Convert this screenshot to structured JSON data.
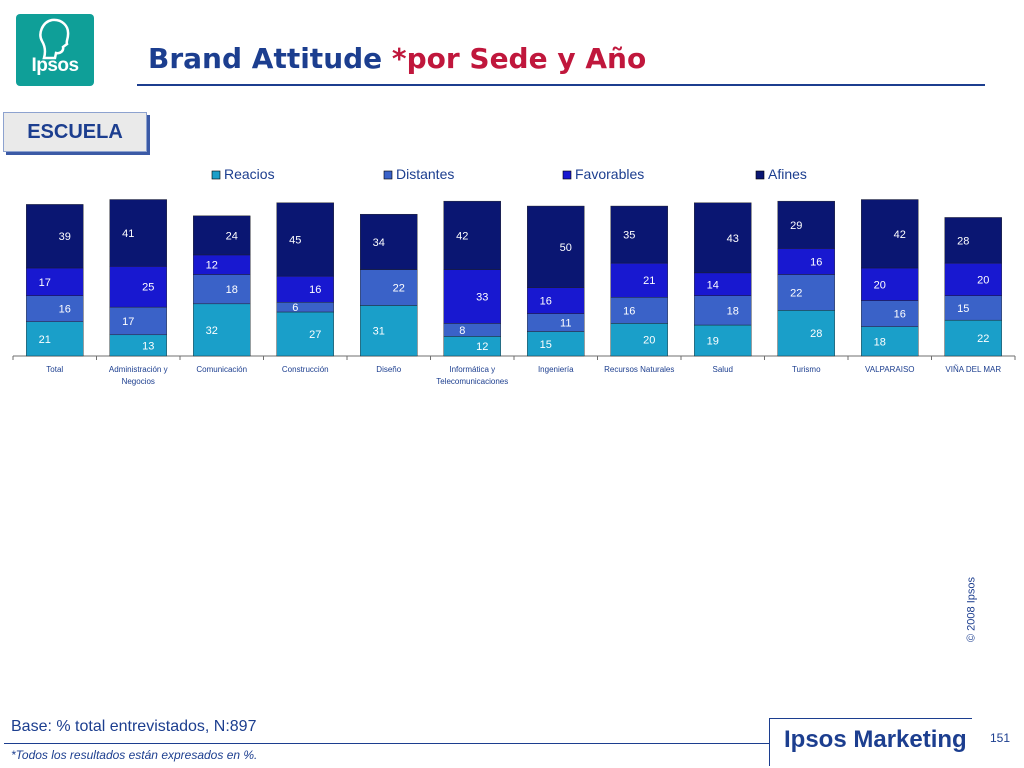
{
  "logo": {
    "text": "Ipsos"
  },
  "header": {
    "title_main": "Brand Attitude",
    "title_highlight": "*por Sede y Año"
  },
  "section_tag": "ESCUELA",
  "colors": {
    "title": "#1c3e8f",
    "highlight": "#c0173c",
    "reacios": "#1a9fc9",
    "distantes": "#3a62c8",
    "favorables": "#1818d0",
    "afines": "#0a1672"
  },
  "chart_data": {
    "type": "bar",
    "stacked": true,
    "legend_position": "top",
    "categories": [
      [
        "Total"
      ],
      [
        "Administración y",
        "Negocios"
      ],
      [
        "Comunicación"
      ],
      [
        "Construcción"
      ],
      [
        "Diseño"
      ],
      [
        "Informática y",
        "Telecomunicaciones"
      ],
      [
        "Ingeniería"
      ],
      [
        "Recursos Naturales"
      ],
      [
        "Salud"
      ],
      [
        "Turismo"
      ],
      [
        "VALPARAISO"
      ],
      [
        "VIÑA DEL MAR"
      ]
    ],
    "series": [
      {
        "name": "Reacios",
        "color": "#1a9fc9",
        "values": [
          21,
          13,
          32,
          27,
          31,
          12,
          15,
          20,
          19,
          28,
          18,
          22
        ]
      },
      {
        "name": "Distantes",
        "color": "#3a62c8",
        "values": [
          16,
          17,
          18,
          6,
          22,
          8,
          11,
          16,
          18,
          22,
          16,
          15
        ]
      },
      {
        "name": "Favorables",
        "color": "#1818d0",
        "values": [
          17,
          25,
          12,
          16,
          0,
          33,
          16,
          21,
          14,
          16,
          20,
          20
        ]
      },
      {
        "name": "Afines",
        "color": "#0a1672",
        "values": [
          39,
          41,
          24,
          45,
          34,
          42,
          50,
          35,
          43,
          29,
          42,
          28
        ]
      }
    ]
  },
  "footer": {
    "base": "Base: % total entrevistados, N:897",
    "note": "*Todos los resultados están expresados en %.",
    "brand": "Ipsos Marketing",
    "page": "151",
    "copyright": "© 2008 Ipsos"
  }
}
